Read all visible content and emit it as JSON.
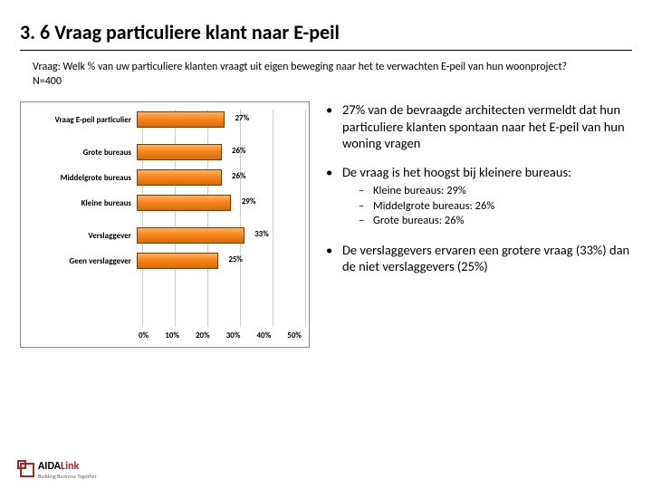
{
  "title": "3. 6 Vraag particuliere klant naar E-peil",
  "question_line1": "Vraag: Welk % van uw particuliere klanten vraagt uit eigen beweging naar  het te verwachten E-peil van hun woonproject?",
  "question_line2": "N=400",
  "chart": {
    "type": "bar-horizontal",
    "x_max_pct": 50,
    "xticks": [
      "0%",
      "10%",
      "20%",
      "30%",
      "40%",
      "50%"
    ],
    "bar_fill_gradient": [
      "#ffb357",
      "#f58220",
      "#d96a00"
    ],
    "bar_border": "#7a3a00",
    "grid_color": "#cccccc",
    "label_fontsize": 9,
    "groups": [
      [
        {
          "label": "Vraag E-peil particulier",
          "value": 27,
          "value_label": "27%"
        }
      ],
      [
        {
          "label": "Grote bureaus",
          "value": 26,
          "value_label": "26%"
        },
        {
          "label": "Middelgrote bureaus",
          "value": 26,
          "value_label": "26%"
        },
        {
          "label": "Kleine bureaus",
          "value": 29,
          "value_label": "29%"
        }
      ],
      [
        {
          "label": "Verslaggever",
          "value": 33,
          "value_label": "33%"
        },
        {
          "label": "Geen verslaggever",
          "value": 25,
          "value_label": "25%"
        }
      ]
    ]
  },
  "bullets": [
    {
      "text": "27% van de bevraagde architecten vermeldt dat hun particuliere klanten spontaan naar het E-peil van hun woning vragen",
      "sub": []
    },
    {
      "text": "De vraag is het hoogst bij kleinere bureaus:",
      "sub": [
        "Kleine bureaus: 29%",
        "Middelgrote bureaus: 26%",
        "Grote bureaus: 26%"
      ]
    },
    {
      "text": "De verslaggevers ervaren een grotere vraag (33%) dan de niet verslaggevers (25%)",
      "sub": []
    }
  ],
  "logo": {
    "text_black": "AIDA",
    "text_red": "Link",
    "tagline": "Building Business Together",
    "border_color": "#b22222"
  }
}
